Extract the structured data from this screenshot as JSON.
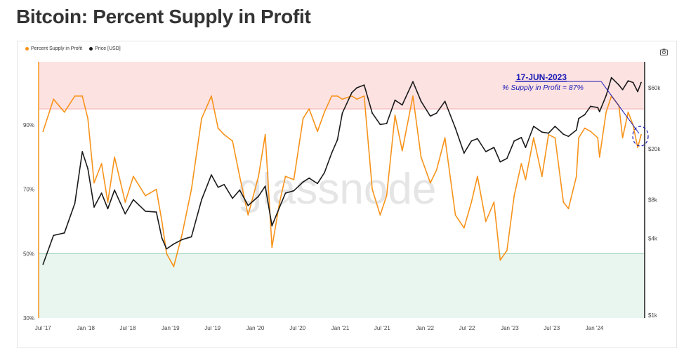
{
  "page_title": "Bitcoin: Percent Supply in Profit",
  "legend": [
    {
      "label": "Percent Supply in Profit",
      "color": "#f7931a"
    },
    {
      "label": "Price [USD]",
      "color": "#1a1a1a"
    }
  ],
  "watermark": "glassnode",
  "icons": {
    "camera": "camera-icon"
  },
  "annotation": {
    "date": "17-JUN-2023",
    "text": "% Supply in Profit = 87%",
    "color": "#1a1ab4"
  },
  "colors": {
    "profit_line": "#f7931a",
    "price_line": "#1a1a1a",
    "upper_band": "#fde2e2",
    "upper_band_line": "#f4a8a8",
    "lower_band": "#e8f6ef",
    "lower_band_line": "#8fd0b0"
  },
  "chart_data": {
    "type": "line",
    "x_tick_labels": [
      "Jul '17",
      "Jan '18",
      "Jul '18",
      "Jan '19",
      "Jul '19",
      "Jan '20",
      "Jul '20",
      "Jan '21",
      "Jul '21",
      "Jan '22",
      "Jul '22",
      "Jan '23",
      "Jul '23",
      "Jan '24"
    ],
    "y_left": {
      "ticks": [
        "90%",
        "70%",
        "50%",
        "30%"
      ],
      "range": [
        30,
        100
      ],
      "unit": "%"
    },
    "y_right": {
      "ticks": [
        "$60k",
        "$20k",
        "$8k",
        "$4k",
        "$1k"
      ],
      "scale": "log",
      "range": [
        1000,
        130000
      ]
    },
    "bands": {
      "upper_threshold_pct": 95,
      "lower_threshold_pct": 50
    },
    "series": [
      {
        "name": "Percent Supply in Profit",
        "axis": "left",
        "x": [
          "2017-07-01",
          "2017-08-15",
          "2017-10-01",
          "2017-11-15",
          "2017-12-17",
          "2018-01-10",
          "2018-02-06",
          "2018-03-10",
          "2018-04-06",
          "2018-05-05",
          "2018-06-20",
          "2018-07-25",
          "2018-09-15",
          "2018-11-01",
          "2018-11-25",
          "2018-12-15",
          "2019-01-15",
          "2019-02-20",
          "2019-04-01",
          "2019-05-15",
          "2019-06-26",
          "2019-07-25",
          "2019-08-20",
          "2019-09-25",
          "2019-10-26",
          "2019-12-01",
          "2020-01-15",
          "2020-02-13",
          "2020-03-13",
          "2020-04-15",
          "2020-05-10",
          "2020-06-15",
          "2020-07-25",
          "2020-08-20",
          "2020-09-25",
          "2020-10-25",
          "2020-11-25",
          "2020-12-20",
          "2021-01-10",
          "2021-02-20",
          "2021-03-14",
          "2021-04-14",
          "2021-05-19",
          "2021-06-22",
          "2021-07-20",
          "2021-08-25",
          "2021-09-25",
          "2021-11-10",
          "2021-12-15",
          "2022-01-24",
          "2022-02-20",
          "2022-03-28",
          "2022-05-12",
          "2022-06-18",
          "2022-07-20",
          "2022-08-15",
          "2022-09-20",
          "2022-10-25",
          "2022-11-21",
          "2022-12-20",
          "2023-01-20",
          "2023-02-20",
          "2023-03-10",
          "2023-04-14",
          "2023-05-20",
          "2023-06-17",
          "2023-07-15",
          "2023-08-20",
          "2023-09-11",
          "2023-10-15",
          "2023-10-25",
          "2023-11-20",
          "2023-12-15",
          "2024-01-15",
          "2024-01-23",
          "2024-02-20",
          "2024-03-14",
          "2024-04-15",
          "2024-05-01",
          "2024-05-25",
          "2024-06-15",
          "2024-07-05",
          "2024-07-20"
        ],
        "values": [
          88,
          98,
          94,
          99,
          99,
          92,
          72,
          78,
          66,
          80,
          66,
          74,
          68,
          70,
          60,
          50,
          46,
          56,
          70,
          92,
          99,
          89,
          87,
          85,
          74,
          62,
          74,
          87,
          52,
          66,
          74,
          73,
          92,
          95,
          88,
          94,
          99,
          99,
          98,
          99,
          98,
          99,
          70,
          62,
          68,
          93,
          82,
          99,
          80,
          72,
          76,
          86,
          62,
          58,
          66,
          74,
          60,
          66,
          48,
          51,
          68,
          78,
          73,
          86,
          74,
          87,
          86,
          66,
          64,
          74,
          86,
          89,
          88,
          86,
          80,
          94,
          99,
          96,
          86,
          94,
          90,
          83,
          87
        ]
      },
      {
        "name": "Price [USD]",
        "axis": "right",
        "x": [
          "2017-07-01",
          "2017-08-15",
          "2017-10-01",
          "2017-11-15",
          "2017-12-17",
          "2018-01-10",
          "2018-02-06",
          "2018-03-10",
          "2018-04-06",
          "2018-05-05",
          "2018-06-20",
          "2018-07-25",
          "2018-09-15",
          "2018-11-01",
          "2018-11-25",
          "2018-12-15",
          "2019-01-15",
          "2019-02-20",
          "2019-04-01",
          "2019-05-15",
          "2019-06-26",
          "2019-07-25",
          "2019-08-20",
          "2019-09-25",
          "2019-10-26",
          "2019-12-01",
          "2020-01-15",
          "2020-02-13",
          "2020-03-13",
          "2020-04-15",
          "2020-05-10",
          "2020-06-15",
          "2020-07-25",
          "2020-08-20",
          "2020-09-25",
          "2020-10-25",
          "2020-11-25",
          "2020-12-20",
          "2021-01-10",
          "2021-02-20",
          "2021-03-14",
          "2021-04-14",
          "2021-05-19",
          "2021-06-22",
          "2021-07-20",
          "2021-08-25",
          "2021-09-25",
          "2021-11-10",
          "2021-12-15",
          "2022-01-24",
          "2022-02-20",
          "2022-03-28",
          "2022-05-12",
          "2022-06-18",
          "2022-07-20",
          "2022-08-15",
          "2022-09-20",
          "2022-10-25",
          "2022-11-21",
          "2022-12-20",
          "2023-01-20",
          "2023-02-20",
          "2023-03-10",
          "2023-04-14",
          "2023-05-20",
          "2023-06-17",
          "2023-07-15",
          "2023-08-20",
          "2023-09-11",
          "2023-10-15",
          "2023-10-25",
          "2023-11-20",
          "2023-12-15",
          "2024-01-15",
          "2024-01-23",
          "2024-02-20",
          "2024-03-14",
          "2024-04-15",
          "2024-05-01",
          "2024-05-25",
          "2024-06-15",
          "2024-07-05",
          "2024-07-20"
        ],
        "values": [
          2500,
          4200,
          4400,
          7500,
          19000,
          14000,
          7000,
          9000,
          6800,
          9500,
          6200,
          8000,
          6500,
          6400,
          4000,
          3300,
          3600,
          3900,
          4100,
          8000,
          12500,
          10000,
          10500,
          8200,
          9500,
          7200,
          8500,
          10200,
          5000,
          7000,
          9000,
          9400,
          11000,
          11800,
          10700,
          13000,
          18500,
          23500,
          38000,
          55000,
          60000,
          63000,
          38000,
          31000,
          31500,
          48000,
          44000,
          67000,
          47000,
          36000,
          38000,
          47000,
          29000,
          18500,
          23000,
          24000,
          19000,
          20500,
          15800,
          16800,
          23000,
          24500,
          20500,
          30000,
          27000,
          26500,
          30000,
          26000,
          25000,
          28000,
          34500,
          37000,
          43000,
          42000,
          39000,
          52000,
          72000,
          63000,
          58000,
          68000,
          66000,
          56000,
          66000
        ]
      }
    ]
  }
}
